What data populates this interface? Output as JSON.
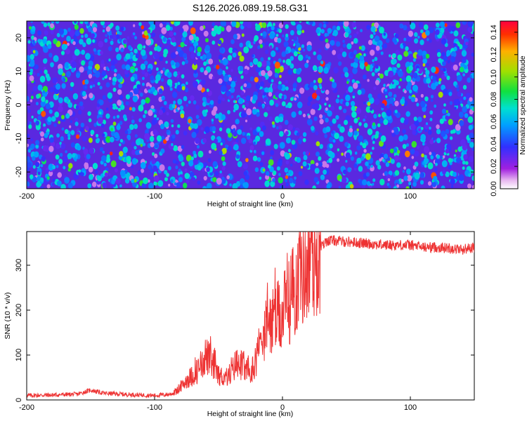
{
  "title": "S126.2026.089.19.58.G31",
  "chart_data": [
    {
      "type": "heatmap",
      "xlabel": "Height of straight line (km)",
      "ylabel": "Frequency (Hz)",
      "xlim": [
        -200,
        150
      ],
      "ylim": [
        -25,
        25
      ],
      "x_ticks": [
        -200,
        -100,
        0,
        100
      ],
      "y_ticks": [
        -20,
        -10,
        0,
        10,
        20
      ],
      "colorbar": {
        "label": "Normalized spectral amplitude",
        "range": [
          0,
          0.15
        ],
        "ticks": [
          "0.00",
          "0.02",
          "0.04",
          "0.06",
          "0.08",
          "0.10",
          "0.12",
          "0.14"
        ]
      }
    },
    {
      "type": "line",
      "xlabel": "Height of straight line (km)",
      "ylabel": "SNR (10 * v/v)",
      "xlim": [
        -200,
        150
      ],
      "ylim": [
        0,
        375
      ],
      "x_ticks": [
        -200,
        -100,
        0,
        100
      ],
      "y_ticks": [
        0,
        100,
        200,
        300
      ],
      "color": "#ee3333",
      "series": [
        {
          "name": "SNR",
          "x": [
            -200,
            -180,
            -160,
            -150,
            -140,
            -120,
            -100,
            -90,
            -85,
            -80,
            -75,
            -70,
            -65,
            -60,
            -55,
            -50,
            -45,
            -40,
            -35,
            -30,
            -25,
            -20,
            -15,
            -10,
            -5,
            0,
            5,
            10,
            15,
            20,
            25,
            30,
            35,
            40,
            60,
            80,
            100,
            110,
            120,
            130,
            140,
            150
          ],
          "y": [
            10,
            11,
            13,
            22,
            15,
            12,
            10,
            12,
            15,
            25,
            45,
            55,
            70,
            100,
            80,
            55,
            50,
            60,
            90,
            70,
            55,
            100,
            150,
            170,
            180,
            190,
            220,
            250,
            290,
            300,
            320,
            340,
            355,
            355,
            350,
            345,
            345,
            340,
            340,
            338,
            335,
            340
          ]
        }
      ]
    }
  ]
}
